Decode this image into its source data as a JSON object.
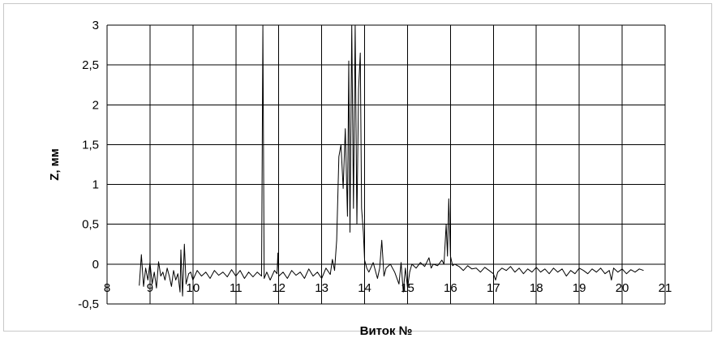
{
  "chart_data": {
    "type": "line",
    "title": "",
    "xlabel": "Виток №",
    "ylabel": "Z, мм",
    "xlim": [
      8,
      21
    ],
    "ylim": [
      -0.5,
      3
    ],
    "x_ticks": [
      "8",
      "9",
      "10",
      "11",
      "12",
      "13",
      "14",
      "15",
      "16",
      "17",
      "18",
      "19",
      "20",
      "21"
    ],
    "y_ticks": [
      "3",
      "2,5",
      "2",
      "1,5",
      "1",
      "0,5",
      "0",
      "-0,5"
    ],
    "grid": true,
    "legend": "none",
    "colors": {
      "line": "#000000",
      "grid": "#000000",
      "frame": "#c8c8c8"
    },
    "series": [
      {
        "points": [
          [
            8.75,
            -0.27
          ],
          [
            8.8,
            0.12
          ],
          [
            8.85,
            -0.28
          ],
          [
            8.9,
            -0.05
          ],
          [
            8.95,
            -0.2
          ],
          [
            9.0,
            0.02
          ],
          [
            9.05,
            -0.25
          ],
          [
            9.1,
            -0.1
          ],
          [
            9.15,
            -0.3
          ],
          [
            9.2,
            0.03
          ],
          [
            9.25,
            -0.15
          ],
          [
            9.3,
            -0.1
          ],
          [
            9.35,
            -0.2
          ],
          [
            9.4,
            -0.05
          ],
          [
            9.45,
            -0.15
          ],
          [
            9.5,
            -0.28
          ],
          [
            9.55,
            -0.08
          ],
          [
            9.6,
            -0.2
          ],
          [
            9.65,
            -0.12
          ],
          [
            9.7,
            -0.35
          ],
          [
            9.72,
            0.18
          ],
          [
            9.76,
            -0.4
          ],
          [
            9.8,
            0.25
          ],
          [
            9.84,
            -0.25
          ],
          [
            9.9,
            -0.12
          ],
          [
            9.95,
            -0.1
          ],
          [
            10.0,
            -0.2
          ],
          [
            10.1,
            -0.08
          ],
          [
            10.2,
            -0.15
          ],
          [
            10.3,
            -0.1
          ],
          [
            10.4,
            -0.18
          ],
          [
            10.5,
            -0.08
          ],
          [
            10.6,
            -0.14
          ],
          [
            10.7,
            -0.1
          ],
          [
            10.8,
            -0.16
          ],
          [
            10.9,
            -0.07
          ],
          [
            11.0,
            -0.15
          ],
          [
            11.1,
            -0.08
          ],
          [
            11.2,
            -0.18
          ],
          [
            11.3,
            -0.1
          ],
          [
            11.4,
            -0.16
          ],
          [
            11.5,
            -0.1
          ],
          [
            11.6,
            -0.15
          ],
          [
            11.63,
            3.0
          ],
          [
            11.66,
            -0.18
          ],
          [
            11.72,
            -0.1
          ],
          [
            11.8,
            -0.2
          ],
          [
            11.9,
            -0.08
          ],
          [
            11.96,
            -0.12
          ],
          [
            11.98,
            0.14
          ],
          [
            12.0,
            -0.15
          ],
          [
            12.1,
            -0.1
          ],
          [
            12.2,
            -0.18
          ],
          [
            12.3,
            -0.08
          ],
          [
            12.4,
            -0.14
          ],
          [
            12.5,
            -0.1
          ],
          [
            12.6,
            -0.18
          ],
          [
            12.7,
            -0.06
          ],
          [
            12.8,
            -0.15
          ],
          [
            12.9,
            -0.1
          ],
          [
            13.0,
            -0.18
          ],
          [
            13.1,
            -0.05
          ],
          [
            13.2,
            -0.13
          ],
          [
            13.25,
            0.06
          ],
          [
            13.3,
            -0.08
          ],
          [
            13.35,
            0.3
          ],
          [
            13.4,
            1.35
          ],
          [
            13.45,
            1.5
          ],
          [
            13.5,
            0.95
          ],
          [
            13.55,
            1.7
          ],
          [
            13.6,
            0.6
          ],
          [
            13.63,
            2.55
          ],
          [
            13.66,
            0.4
          ],
          [
            13.7,
            3.0
          ],
          [
            13.74,
            0.7
          ],
          [
            13.78,
            3.0
          ],
          [
            13.82,
            0.5
          ],
          [
            13.86,
            2.2
          ],
          [
            13.9,
            2.65
          ],
          [
            13.93,
            0.7
          ],
          [
            13.97,
            0.4
          ],
          [
            14.0,
            0.05
          ],
          [
            14.05,
            -0.05
          ],
          [
            14.1,
            -0.1
          ],
          [
            14.2,
            0.02
          ],
          [
            14.3,
            -0.18
          ],
          [
            14.35,
            -0.05
          ],
          [
            14.4,
            0.3
          ],
          [
            14.45,
            -0.15
          ],
          [
            14.5,
            -0.05
          ],
          [
            14.6,
            0.0
          ],
          [
            14.7,
            -0.1
          ],
          [
            14.8,
            -0.25
          ],
          [
            14.85,
            0.02
          ],
          [
            14.9,
            -0.35
          ],
          [
            14.95,
            -0.05
          ],
          [
            15.0,
            -0.3
          ],
          [
            15.05,
            -0.1
          ],
          [
            15.1,
            0.0
          ],
          [
            15.2,
            -0.05
          ],
          [
            15.3,
            0.02
          ],
          [
            15.4,
            -0.03
          ],
          [
            15.5,
            0.08
          ],
          [
            15.55,
            -0.05
          ],
          [
            15.6,
            0.0
          ],
          [
            15.7,
            -0.02
          ],
          [
            15.8,
            0.05
          ],
          [
            15.85,
            0.0
          ],
          [
            15.9,
            0.5
          ],
          [
            15.93,
            0.1
          ],
          [
            15.96,
            0.82
          ],
          [
            16.0,
            0.1
          ],
          [
            16.05,
            -0.02
          ],
          [
            16.1,
            0.0
          ],
          [
            16.2,
            -0.03
          ],
          [
            16.3,
            -0.08
          ],
          [
            16.4,
            -0.02
          ],
          [
            16.5,
            -0.06
          ],
          [
            16.6,
            -0.05
          ],
          [
            16.7,
            -0.1
          ],
          [
            16.8,
            -0.04
          ],
          [
            16.9,
            -0.08
          ],
          [
            17.0,
            -0.12
          ],
          [
            17.05,
            -0.2
          ],
          [
            17.1,
            -0.1
          ],
          [
            17.2,
            -0.05
          ],
          [
            17.3,
            -0.08
          ],
          [
            17.4,
            -0.03
          ],
          [
            17.5,
            -0.1
          ],
          [
            17.6,
            -0.05
          ],
          [
            17.7,
            -0.12
          ],
          [
            17.8,
            -0.06
          ],
          [
            17.9,
            -0.1
          ],
          [
            18.0,
            -0.04
          ],
          [
            18.1,
            -0.1
          ],
          [
            18.2,
            -0.06
          ],
          [
            18.3,
            -0.12
          ],
          [
            18.4,
            -0.05
          ],
          [
            18.5,
            -0.1
          ],
          [
            18.6,
            -0.06
          ],
          [
            18.7,
            -0.15
          ],
          [
            18.8,
            -0.08
          ],
          [
            18.9,
            -0.12
          ],
          [
            19.0,
            -0.05
          ],
          [
            19.1,
            -0.08
          ],
          [
            19.2,
            -0.12
          ],
          [
            19.3,
            -0.06
          ],
          [
            19.4,
            -0.1
          ],
          [
            19.5,
            -0.05
          ],
          [
            19.6,
            -0.12
          ],
          [
            19.7,
            -0.08
          ],
          [
            19.75,
            -0.2
          ],
          [
            19.8,
            -0.05
          ],
          [
            19.9,
            -0.1
          ],
          [
            20.0,
            -0.06
          ],
          [
            20.1,
            -0.12
          ],
          [
            20.2,
            -0.07
          ],
          [
            20.3,
            -0.1
          ],
          [
            20.4,
            -0.06
          ],
          [
            20.5,
            -0.08
          ]
        ]
      }
    ]
  }
}
